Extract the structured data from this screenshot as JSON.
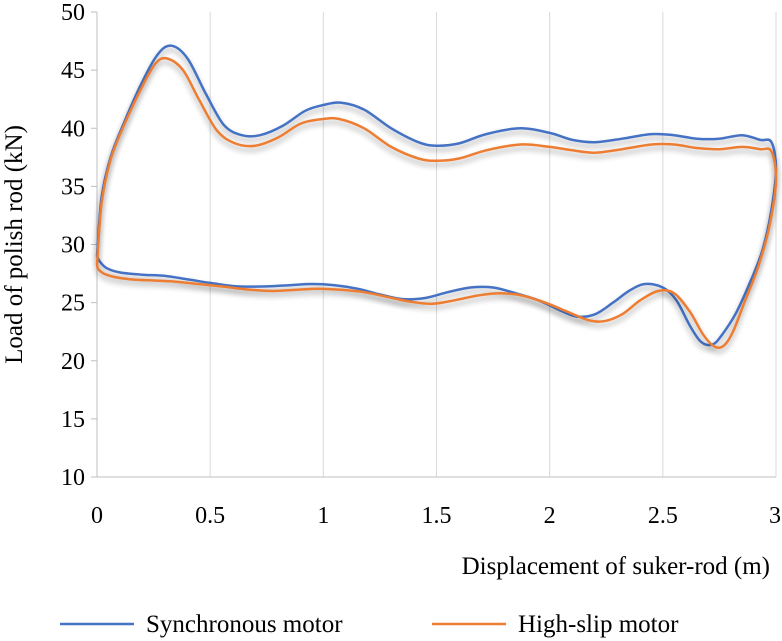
{
  "chart_data": {
    "type": "line",
    "xlabel": "Displacement of suker-rod (m)",
    "ylabel": "Load of polish rod (kN)",
    "xlim": [
      0,
      3
    ],
    "ylim": [
      10,
      50
    ],
    "x_ticks": [
      0,
      0.5,
      1,
      1.5,
      2,
      2.5,
      3
    ],
    "x_tick_labels": [
      "0",
      "0.5",
      "1",
      "1.5",
      "2",
      "2.5",
      "3"
    ],
    "y_ticks": [
      10,
      15,
      20,
      25,
      30,
      35,
      40,
      45,
      50
    ],
    "y_tick_labels": [
      "10",
      "15",
      "20",
      "25",
      "30",
      "35",
      "40",
      "45",
      "50"
    ],
    "grid": "vertical",
    "legend_position": "bottom",
    "series": [
      {
        "name": "Synchronous motor",
        "color": "#4472C4",
        "points": [
          [
            0.0,
            29.0
          ],
          [
            0.02,
            34.0
          ],
          [
            0.06,
            37.5
          ],
          [
            0.12,
            40.5
          ],
          [
            0.2,
            44.0
          ],
          [
            0.27,
            46.4
          ],
          [
            0.33,
            47.1
          ],
          [
            0.4,
            46.0
          ],
          [
            0.48,
            43.0
          ],
          [
            0.56,
            40.3
          ],
          [
            0.64,
            39.4
          ],
          [
            0.72,
            39.4
          ],
          [
            0.82,
            40.2
          ],
          [
            0.92,
            41.5
          ],
          [
            1.0,
            42.0
          ],
          [
            1.08,
            42.2
          ],
          [
            1.18,
            41.6
          ],
          [
            1.3,
            40.0
          ],
          [
            1.42,
            38.8
          ],
          [
            1.5,
            38.5
          ],
          [
            1.6,
            38.7
          ],
          [
            1.72,
            39.5
          ],
          [
            1.87,
            40.0
          ],
          [
            2.0,
            39.6
          ],
          [
            2.1,
            39.0
          ],
          [
            2.2,
            38.8
          ],
          [
            2.32,
            39.1
          ],
          [
            2.45,
            39.5
          ],
          [
            2.55,
            39.4
          ],
          [
            2.65,
            39.1
          ],
          [
            2.75,
            39.1
          ],
          [
            2.85,
            39.4
          ],
          [
            2.93,
            39.0
          ],
          [
            2.98,
            38.8
          ],
          [
            3.0,
            36.5
          ],
          [
            2.98,
            33.0
          ],
          [
            2.94,
            29.5
          ],
          [
            2.88,
            26.5
          ],
          [
            2.82,
            24.0
          ],
          [
            2.76,
            22.2
          ],
          [
            2.72,
            21.4
          ],
          [
            2.67,
            21.6
          ],
          [
            2.62,
            23.0
          ],
          [
            2.56,
            25.2
          ],
          [
            2.5,
            26.3
          ],
          [
            2.42,
            26.6
          ],
          [
            2.35,
            26.0
          ],
          [
            2.28,
            25.0
          ],
          [
            2.2,
            24.0
          ],
          [
            2.12,
            23.8
          ],
          [
            2.05,
            24.3
          ],
          [
            1.95,
            25.2
          ],
          [
            1.85,
            25.8
          ],
          [
            1.75,
            26.3
          ],
          [
            1.65,
            26.3
          ],
          [
            1.55,
            25.9
          ],
          [
            1.45,
            25.4
          ],
          [
            1.35,
            25.3
          ],
          [
            1.25,
            25.7
          ],
          [
            1.15,
            26.2
          ],
          [
            1.05,
            26.5
          ],
          [
            0.95,
            26.6
          ],
          [
            0.85,
            26.5
          ],
          [
            0.75,
            26.4
          ],
          [
            0.62,
            26.4
          ],
          [
            0.5,
            26.7
          ],
          [
            0.4,
            27.0
          ],
          [
            0.3,
            27.3
          ],
          [
            0.2,
            27.4
          ],
          [
            0.1,
            27.6
          ],
          [
            0.04,
            28.0
          ],
          [
            0.01,
            28.6
          ],
          [
            0.0,
            29.0
          ]
        ]
      },
      {
        "name": "High-slip motor",
        "color": "#ED7D31",
        "points": [
          [
            0.0,
            28.3
          ],
          [
            0.02,
            33.5
          ],
          [
            0.06,
            37.3
          ],
          [
            0.12,
            40.3
          ],
          [
            0.2,
            43.6
          ],
          [
            0.26,
            45.6
          ],
          [
            0.31,
            46.0
          ],
          [
            0.38,
            45.0
          ],
          [
            0.45,
            42.5
          ],
          [
            0.53,
            39.8
          ],
          [
            0.61,
            38.7
          ],
          [
            0.7,
            38.5
          ],
          [
            0.8,
            39.2
          ],
          [
            0.9,
            40.4
          ],
          [
            1.0,
            40.8
          ],
          [
            1.07,
            40.8
          ],
          [
            1.18,
            40.0
          ],
          [
            1.3,
            38.4
          ],
          [
            1.42,
            37.4
          ],
          [
            1.5,
            37.2
          ],
          [
            1.6,
            37.4
          ],
          [
            1.72,
            38.1
          ],
          [
            1.87,
            38.6
          ],
          [
            2.0,
            38.4
          ],
          [
            2.1,
            38.1
          ],
          [
            2.2,
            37.9
          ],
          [
            2.32,
            38.2
          ],
          [
            2.45,
            38.6
          ],
          [
            2.55,
            38.6
          ],
          [
            2.65,
            38.3
          ],
          [
            2.75,
            38.2
          ],
          [
            2.85,
            38.4
          ],
          [
            2.93,
            38.2
          ],
          [
            2.98,
            38.0
          ],
          [
            3.0,
            35.5
          ],
          [
            2.97,
            31.5
          ],
          [
            2.92,
            28.0
          ],
          [
            2.86,
            25.0
          ],
          [
            2.81,
            22.5
          ],
          [
            2.77,
            21.3
          ],
          [
            2.73,
            21.2
          ],
          [
            2.68,
            22.2
          ],
          [
            2.62,
            24.2
          ],
          [
            2.55,
            25.8
          ],
          [
            2.48,
            26.0
          ],
          [
            2.4,
            25.2
          ],
          [
            2.32,
            24.0
          ],
          [
            2.24,
            23.4
          ],
          [
            2.17,
            23.5
          ],
          [
            2.08,
            24.2
          ],
          [
            1.98,
            25.0
          ],
          [
            1.88,
            25.6
          ],
          [
            1.78,
            25.8
          ],
          [
            1.68,
            25.6
          ],
          [
            1.58,
            25.2
          ],
          [
            1.48,
            24.9
          ],
          [
            1.38,
            25.1
          ],
          [
            1.28,
            25.5
          ],
          [
            1.18,
            25.9
          ],
          [
            1.08,
            26.1
          ],
          [
            0.98,
            26.2
          ],
          [
            0.88,
            26.1
          ],
          [
            0.78,
            26.0
          ],
          [
            0.68,
            26.1
          ],
          [
            0.55,
            26.4
          ],
          [
            0.45,
            26.6
          ],
          [
            0.35,
            26.8
          ],
          [
            0.25,
            26.9
          ],
          [
            0.15,
            27.0
          ],
          [
            0.08,
            27.2
          ],
          [
            0.03,
            27.5
          ],
          [
            0.005,
            27.9
          ],
          [
            0.0,
            28.3
          ]
        ]
      }
    ]
  }
}
